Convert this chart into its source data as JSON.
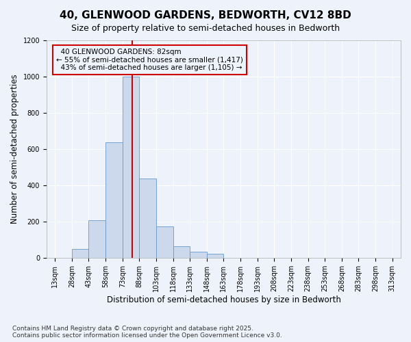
{
  "title_line1": "40, GLENWOOD GARDENS, BEDWORTH, CV12 8BD",
  "title_line2": "Size of property relative to semi-detached houses in Bedworth",
  "xlabel": "Distribution of semi-detached houses by size in Bedworth",
  "ylabel": "Number of semi-detached properties",
  "footnote": "Contains HM Land Registry data © Crown copyright and database right 2025.\nContains public sector information licensed under the Open Government Licence v3.0.",
  "annotation_line1": "  40 GLENWOOD GARDENS: 82sqm  ",
  "annotation_line2": "← 55% of semi-detached houses are smaller (1,417)",
  "annotation_line3": "  43% of semi-detached houses are larger (1,105) →",
  "property_size": 82,
  "bins": [
    13,
    28,
    43,
    58,
    73,
    88,
    103,
    118,
    133,
    148,
    163,
    178,
    193,
    208,
    223,
    238,
    253,
    268,
    283,
    298,
    313
  ],
  "counts": [
    0,
    50,
    210,
    640,
    1000,
    440,
    175,
    65,
    35,
    25,
    0,
    0,
    0,
    0,
    0,
    0,
    0,
    0,
    0,
    0
  ],
  "bar_color": "#ccd9ed",
  "bar_edge_color": "#6699cc",
  "vline_color": "#cc0000",
  "annotation_box_color": "#cc0000",
  "background_color": "#eef2fb",
  "ylim": [
    0,
    1200
  ],
  "yticks": [
    0,
    200,
    400,
    600,
    800,
    1000,
    1200
  ],
  "grid_color": "#ffffff",
  "title_fontsize": 11,
  "subtitle_fontsize": 9,
  "axis_label_fontsize": 8.5,
  "tick_fontsize": 7,
  "annotation_fontsize": 7.5,
  "footnote_fontsize": 6.5
}
